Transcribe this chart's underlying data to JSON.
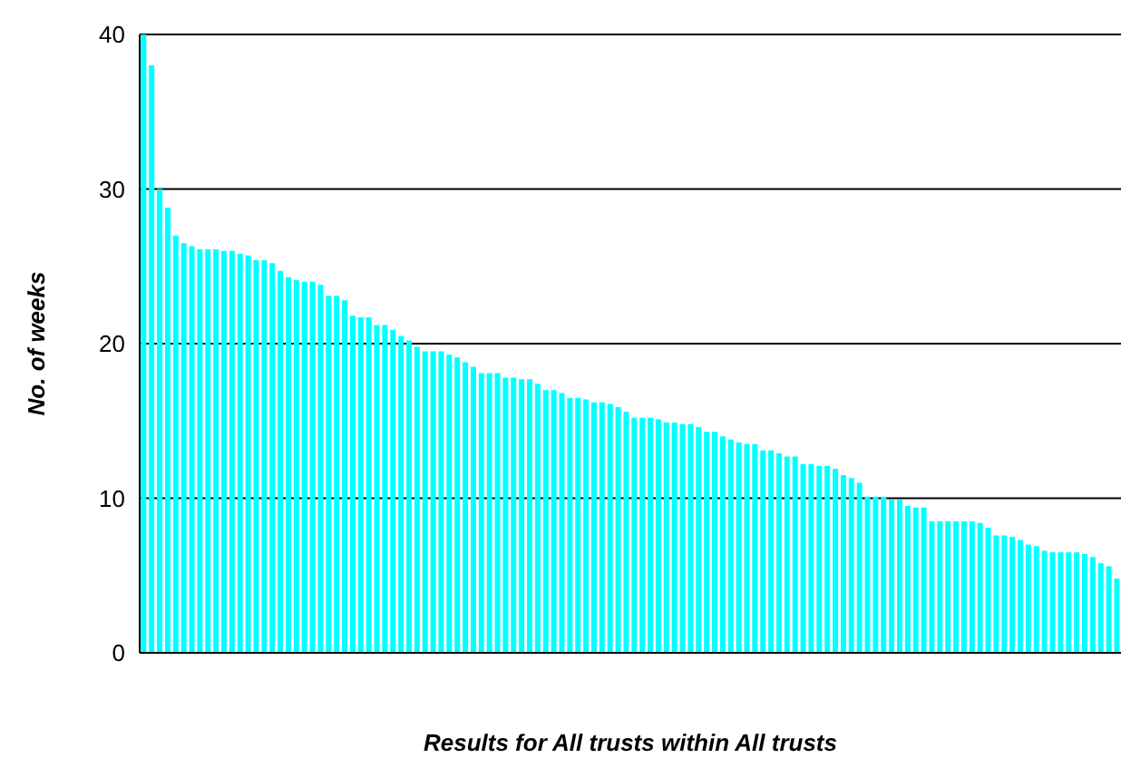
{
  "chart_data": {
    "type": "bar",
    "xlabel": "Results for All trusts within All trusts",
    "ylabel": "No. of weeks",
    "categories": [
      null,
      null,
      null,
      null,
      null,
      null,
      null,
      null,
      null,
      null,
      null,
      null,
      null,
      null,
      null,
      null,
      null,
      null,
      null,
      null,
      null,
      null,
      null,
      null,
      null,
      null,
      null,
      null,
      null,
      null,
      null,
      null,
      null,
      null,
      null,
      null,
      null,
      null,
      null,
      null,
      null,
      null,
      null,
      null,
      null,
      null,
      null,
      null,
      null,
      null,
      null,
      null,
      null,
      null,
      null,
      null,
      null,
      null,
      null,
      null,
      null,
      null,
      null,
      null,
      null,
      null,
      null,
      null,
      null,
      null,
      null,
      null,
      null,
      null,
      null,
      null,
      null,
      null,
      null,
      null,
      null,
      null,
      null,
      null,
      null,
      null,
      null,
      null,
      null,
      null,
      null,
      null,
      null,
      null,
      null,
      null,
      null,
      null,
      null,
      null,
      null,
      null,
      null,
      null,
      null,
      null,
      null,
      null,
      null,
      null,
      null,
      null,
      null,
      null,
      null,
      null,
      null,
      null,
      null,
      null,
      null,
      null
    ],
    "values": [
      40,
      38.0,
      30.0,
      28.8,
      27.0,
      26.5,
      26.3,
      26.1,
      26.1,
      26.1,
      26.0,
      26.0,
      25.8,
      25.7,
      25.4,
      25.4,
      25.2,
      24.7,
      24.3,
      24.1,
      24.0,
      24.0,
      23.8,
      23.1,
      23.1,
      22.8,
      21.8,
      21.7,
      21.7,
      21.2,
      21.2,
      20.9,
      20.5,
      20.2,
      19.8,
      19.5,
      19.5,
      19.5,
      19.3,
      19.1,
      18.8,
      18.5,
      18.1,
      18.1,
      18.1,
      17.8,
      17.8,
      17.7,
      17.7,
      17.4,
      17.0,
      17.0,
      16.8,
      16.5,
      16.5,
      16.4,
      16.2,
      16.2,
      16.1,
      15.9,
      15.6,
      15.2,
      15.2,
      15.2,
      15.1,
      14.9,
      14.9,
      14.8,
      14.8,
      14.6,
      14.3,
      14.3,
      14.0,
      13.8,
      13.6,
      13.5,
      13.5,
      13.1,
      13.1,
      12.9,
      12.7,
      12.7,
      12.2,
      12.2,
      12.1,
      12.1,
      11.9,
      11.5,
      11.3,
      11.0,
      10.1,
      10.1,
      10.1,
      9.9,
      9.9,
      9.5,
      9.4,
      9.4,
      8.5,
      8.5,
      8.5,
      8.5,
      8.5,
      8.5,
      8.4,
      8.1,
      7.6,
      7.6,
      7.5,
      7.3,
      7.0,
      6.9,
      6.6,
      6.5,
      6.5,
      6.5,
      6.5,
      6.4,
      6.2,
      5.8,
      5.6,
      4.8
    ],
    "color": "#00ffff",
    "ylim": [
      0,
      40
    ],
    "yticks": [
      0,
      10,
      20,
      30,
      40
    ],
    "grid": "y",
    "tick_labels": "y"
  }
}
